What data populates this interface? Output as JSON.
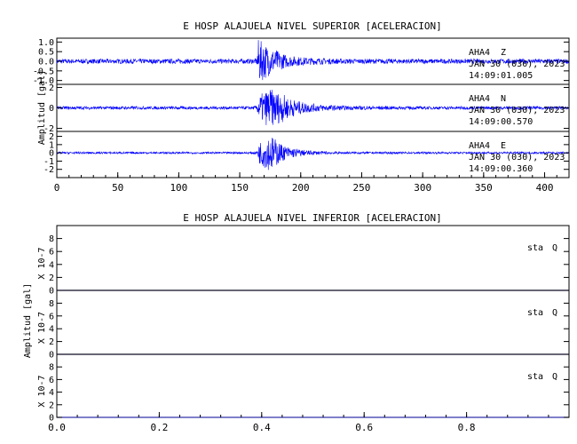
{
  "chart_data": [
    {
      "type": "line",
      "title": "E HOSP ALAJUELA NIVEL SUPERIOR [ACELERACION]",
      "ylabel": "Amplitud [gal]",
      "xlim": [
        0,
        420
      ],
      "x_ticks": [
        "0",
        "50",
        "100",
        "150",
        "200",
        "250",
        "300",
        "350",
        "400"
      ],
      "x_tick_values": [
        0,
        50,
        100,
        150,
        200,
        250,
        300,
        350,
        400
      ],
      "line_color": "#0000ff",
      "grid": false,
      "panels": [
        {
          "station": "AHA4",
          "component": "Z",
          "date": "JAN 30 (030), 2023",
          "time": "14:09:01.005",
          "ylim": [
            -1.2,
            1.2
          ],
          "y_ticks": [
            "1.0",
            "0.5",
            "0.0",
            "-0.5",
            "-1.0"
          ],
          "y_tick_values": [
            1.0,
            0.5,
            0.0,
            -0.5,
            -1.0
          ],
          "envelope": {
            "x": [
              0,
              160,
              164,
              165,
              170,
              175,
              180,
              185,
              190,
              200,
              210,
              220,
              240,
              300,
              420
            ],
            "amplitude": [
              0.12,
              0.12,
              0.15,
              1.15,
              0.95,
              0.7,
              0.6,
              0.4,
              0.3,
              0.22,
              0.18,
              0.15,
              0.13,
              0.12,
              0.12
            ]
          }
        },
        {
          "station": "AHA4",
          "component": "N",
          "date": "JAN 30 (030), 2023",
          "time": "14:09:00.570",
          "ylim": [
            -2.3,
            2.3
          ],
          "y_ticks": [
            "2",
            "0",
            "-2"
          ],
          "y_tick_values": [
            2,
            0,
            -2
          ],
          "envelope": {
            "x": [
              0,
              160,
              164,
              166,
              170,
              175,
              180,
              185,
              190,
              200,
              210,
              220,
              240,
              300,
              420
            ],
            "amplitude": [
              0.15,
              0.15,
              0.2,
              1.2,
              1.6,
              1.9,
              1.6,
              1.4,
              1.0,
              0.6,
              0.4,
              0.3,
              0.2,
              0.15,
              0.15
            ]
          }
        },
        {
          "station": "AHA4",
          "component": "E",
          "date": "JAN 30 (030), 2023",
          "time": "14:09:00.360",
          "ylim": [
            -3,
            2.6
          ],
          "y_ticks": [
            "2",
            "1",
            "0",
            "-1",
            "-2"
          ],
          "y_tick_values": [
            2,
            1,
            0,
            -1,
            -2
          ],
          "envelope": {
            "x": [
              0,
              160,
              164,
              166,
              170,
              175,
              180,
              185,
              190,
              200,
              210,
              220,
              240,
              300,
              420
            ],
            "amplitude": [
              0.12,
              0.12,
              0.2,
              1.3,
              1.8,
              2.2,
              1.6,
              1.0,
              0.7,
              0.4,
              0.25,
              0.18,
              0.14,
              0.12,
              0.12
            ]
          }
        }
      ]
    },
    {
      "type": "line",
      "title": "E HOSP ALAJUELA NIVEL INFERIOR [ACELERACION]",
      "ylabel": "Amplitud [gal]",
      "panel_ylabel": "X 10-7",
      "xlim": [
        0,
        1
      ],
      "x_ticks": [
        "0.0",
        "0.2",
        "0.4",
        "0.6",
        "0.8"
      ],
      "x_tick_values": [
        0,
        0.2,
        0.4,
        0.6,
        0.8
      ],
      "line_color": "#3333aa",
      "grid": false,
      "panels": [
        {
          "station": "sta",
          "component": "Q",
          "ylim": [
            0,
            10
          ],
          "y_ticks": [
            "8",
            "6",
            "4",
            "2",
            "0"
          ],
          "y_tick_values": [
            8,
            6,
            4,
            2,
            0
          ],
          "x": [
            0,
            1
          ],
          "y": [
            0,
            0
          ]
        },
        {
          "station": "sta",
          "component": "Q",
          "ylim": [
            0,
            10
          ],
          "y_ticks": [
            "8",
            "6",
            "4",
            "2",
            "0"
          ],
          "y_tick_values": [
            8,
            6,
            4,
            2,
            0
          ],
          "x": [
            0,
            1
          ],
          "y": [
            0,
            0
          ]
        },
        {
          "station": "sta",
          "component": "Q",
          "ylim": [
            0,
            10
          ],
          "y_ticks": [
            "8",
            "6",
            "4",
            "2",
            "0"
          ],
          "y_tick_values": [
            8,
            6,
            4,
            2,
            0
          ],
          "x": [
            0,
            1
          ],
          "y": [
            0,
            0
          ]
        }
      ]
    }
  ]
}
